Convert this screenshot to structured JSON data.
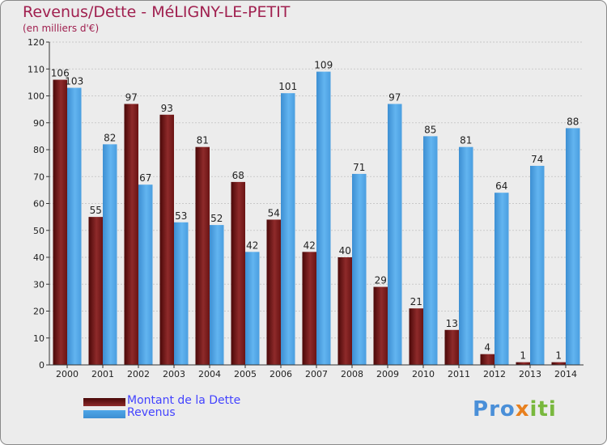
{
  "title": "Revenus/Dette - MéLIGNY-LE-PETIT",
  "subtitle": "(en milliers d'€)",
  "logo": {
    "letters": [
      {
        "ch": "P",
        "color": "#4a8fd8"
      },
      {
        "ch": "r",
        "color": "#4a8fd8"
      },
      {
        "ch": "o",
        "color": "#4a8fd8"
      },
      {
        "ch": "x",
        "color": "#e8801e"
      },
      {
        "ch": "i",
        "color": "#79b83e"
      },
      {
        "ch": "t",
        "color": "#79b83e"
      },
      {
        "ch": "i",
        "color": "#79b83e"
      }
    ]
  },
  "chart_data": {
    "type": "bar",
    "title": "Revenus/Dette - MéLIGNY-LE-PETIT",
    "subtitle": "(en milliers d'€)",
    "categories": [
      "2000",
      "2001",
      "2002",
      "2003",
      "2004",
      "2005",
      "2006",
      "2007",
      "2008",
      "2009",
      "2010",
      "2011",
      "2012",
      "2013",
      "2014"
    ],
    "series": [
      {
        "name": "Montant de la Dette",
        "color": "#7a1a1a",
        "values": [
          106,
          55,
          97,
          93,
          81,
          68,
          54,
          42,
          40,
          29,
          21,
          13,
          4,
          1,
          1
        ]
      },
      {
        "name": "Revenus",
        "color": "#4fa6e8",
        "values": [
          103,
          82,
          67,
          53,
          52,
          42,
          101,
          109,
          71,
          97,
          85,
          81,
          64,
          74,
          88
        ]
      }
    ],
    "ylim": [
      0,
      120
    ],
    "yticks": [
      0,
      10,
      20,
      30,
      40,
      50,
      60,
      70,
      80,
      90,
      100,
      110,
      120
    ],
    "grid": true,
    "legend": "bottom-left"
  }
}
